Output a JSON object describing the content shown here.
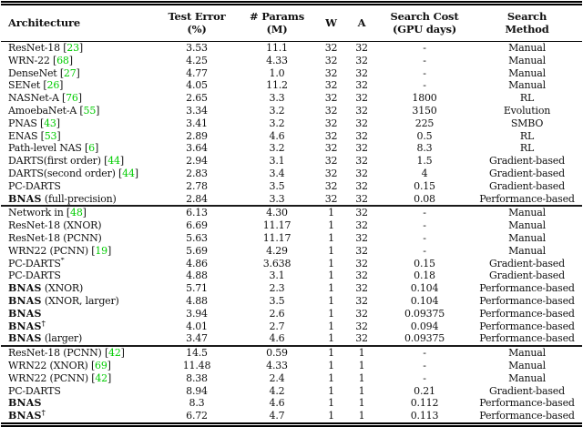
{
  "table": {
    "cite_color": "#00cc00",
    "columns": [
      {
        "id": "arch",
        "line1": "Architecture",
        "line2": ""
      },
      {
        "id": "err",
        "line1": "Test Error",
        "line2": "(%)"
      },
      {
        "id": "params",
        "line1": "# Params",
        "line2": "(M)"
      },
      {
        "id": "w",
        "line1": "W",
        "line2": ""
      },
      {
        "id": "a",
        "line1": "A",
        "line2": ""
      },
      {
        "id": "cost",
        "line1": "Search Cost",
        "line2": "(GPU days)"
      },
      {
        "id": "method",
        "line1": "Search",
        "line2": "Method"
      }
    ],
    "sections": [
      {
        "rows": [
          {
            "arch": "ResNet-18",
            "cite": "23",
            "err": "3.53",
            "params": "11.1",
            "w": "32",
            "a": "32",
            "cost": "-",
            "method": "Manual"
          },
          {
            "arch": "WRN-22",
            "cite": "68",
            "err": "4.25",
            "params": "4.33",
            "w": "32",
            "a": "32",
            "cost": "-",
            "method": "Manual"
          },
          {
            "arch": "DenseNet",
            "cite": "27",
            "err": "4.77",
            "params": "1.0",
            "w": "32",
            "a": "32",
            "cost": "-",
            "method": "Manual"
          },
          {
            "arch": "SENet",
            "cite": "26",
            "err": "4.05",
            "params": "11.2",
            "w": "32",
            "a": "32",
            "cost": "-",
            "method": "Manual"
          },
          {
            "arch": "NASNet-A",
            "cite": "76",
            "err": "2.65",
            "params": "3.3",
            "w": "32",
            "a": "32",
            "cost": "1800",
            "method": "RL"
          },
          {
            "arch": "AmoebaNet-A",
            "cite": "55",
            "err": "3.34",
            "params": "3.2",
            "w": "32",
            "a": "32",
            "cost": "3150",
            "method": "Evolution"
          },
          {
            "arch": "PNAS",
            "cite": "43",
            "err": "3.41",
            "params": "3.2",
            "w": "32",
            "a": "32",
            "cost": "225",
            "method": "SMBO"
          },
          {
            "arch": "ENAS",
            "cite": "53",
            "err": "2.89",
            "params": "4.6",
            "w": "32",
            "a": "32",
            "cost": "0.5",
            "method": "RL"
          },
          {
            "arch": "Path-level NAS",
            "cite": "6",
            "err": "3.64",
            "params": "3.2",
            "w": "32",
            "a": "32",
            "cost": "8.3",
            "method": "RL"
          },
          {
            "arch": "DARTS(first order)",
            "cite": "44",
            "err": "2.94",
            "params": "3.1",
            "w": "32",
            "a": "32",
            "cost": "1.5",
            "method": "Gradient-based"
          },
          {
            "arch": "DARTS(second order)",
            "cite": "44",
            "err": "2.83",
            "params": "3.4",
            "w": "32",
            "a": "32",
            "cost": "4",
            "method": "Gradient-based"
          },
          {
            "arch": "PC-DARTS",
            "err": "2.78",
            "params": "3.5",
            "w": "32",
            "a": "32",
            "cost": "0.15",
            "method": "Gradient-based"
          },
          {
            "arch": "BNAS",
            "bold": true,
            "suffix": " (full-precision)",
            "err": "2.84",
            "params": "3.3",
            "w": "32",
            "a": "32",
            "cost": "0.08",
            "method": "Performance-based"
          }
        ]
      },
      {
        "rows": [
          {
            "arch": "Network in",
            "cite": "48",
            "err": "6.13",
            "params": "4.30",
            "w": "1",
            "a": "32",
            "cost": "-",
            "method": "Manual"
          },
          {
            "arch": "ResNet-18 (XNOR)",
            "err": "6.69",
            "params": "11.17",
            "w": "1",
            "a": "32",
            "cost": "-",
            "method": "Manual"
          },
          {
            "arch": "ResNet-18 (PCNN)",
            "err": "5.63",
            "params": "11.17",
            "w": "1",
            "a": "32",
            "cost": "-",
            "method": "Manual"
          },
          {
            "arch": "WRN22 (PCNN)",
            "cite": "19",
            "err": "5.69",
            "params": "4.29",
            "w": "1",
            "a": "32",
            "cost": "-",
            "method": "Manual"
          },
          {
            "arch": "PC-DARTS",
            "sup": "*",
            "err": "4.86",
            "params": "3.638",
            "w": "1",
            "a": "32",
            "cost": "0.15",
            "method": "Gradient-based"
          },
          {
            "arch": "PC-DARTS",
            "err": "4.88",
            "params": "3.1",
            "w": "1",
            "a": "32",
            "cost": "0.18",
            "method": "Gradient-based"
          },
          {
            "arch": "BNAS",
            "bold": true,
            "suffix": " (XNOR)",
            "err": "5.71",
            "params": "2.3",
            "w": "1",
            "a": "32",
            "cost": "0.104",
            "method": "Performance-based"
          },
          {
            "arch": "BNAS",
            "bold": true,
            "suffix": " (XNOR, larger)",
            "err": "4.88",
            "params": "3.5",
            "w": "1",
            "a": "32",
            "cost": "0.104",
            "method": "Performance-based"
          },
          {
            "arch": "BNAS",
            "bold": true,
            "err": "3.94",
            "params": "2.6",
            "w": "1",
            "a": "32",
            "cost": "0.09375",
            "method": "Performance-based"
          },
          {
            "arch": "BNAS",
            "bold": true,
            "sup": "†",
            "err": "4.01",
            "params": "2.7",
            "w": "1",
            "a": "32",
            "cost": "0.094",
            "method": "Performance-based"
          },
          {
            "arch": "BNAS",
            "bold": true,
            "suffix": " (larger)",
            "err": "3.47",
            "params": "4.6",
            "w": "1",
            "a": "32",
            "cost": "0.09375",
            "method": "Performance-based"
          }
        ]
      },
      {
        "rows": [
          {
            "arch": "ResNet-18 (PCNN)",
            "cite": "42",
            "err": "14.5",
            "params": "0.59",
            "w": "1",
            "a": "1",
            "cost": "-",
            "method": "Manual"
          },
          {
            "arch": "WRN22 (XNOR)",
            "cite": "69",
            "err": "11.48",
            "params": "4.33",
            "w": "1",
            "a": "1",
            "cost": "-",
            "method": "Manual"
          },
          {
            "arch": "WRN22 (PCNN)",
            "cite": "42",
            "err": "8.38",
            "params": "2.4",
            "w": "1",
            "a": "1",
            "cost": "-",
            "method": "Manual"
          },
          {
            "arch": "PC-DARTS",
            "err": "8.94",
            "params": "4.2",
            "w": "1",
            "a": "1",
            "cost": "0.21",
            "method": "Gradient-based"
          },
          {
            "arch": "BNAS",
            "bold": true,
            "err": "8.3",
            "params": "4.6",
            "w": "1",
            "a": "1",
            "cost": "0.112",
            "method": "Performance-based"
          },
          {
            "arch": "BNAS",
            "bold": true,
            "sup": "†",
            "err": "6.72",
            "params": "4.7",
            "w": "1",
            "a": "1",
            "cost": "0.113",
            "method": "Performance-based"
          }
        ]
      }
    ]
  }
}
